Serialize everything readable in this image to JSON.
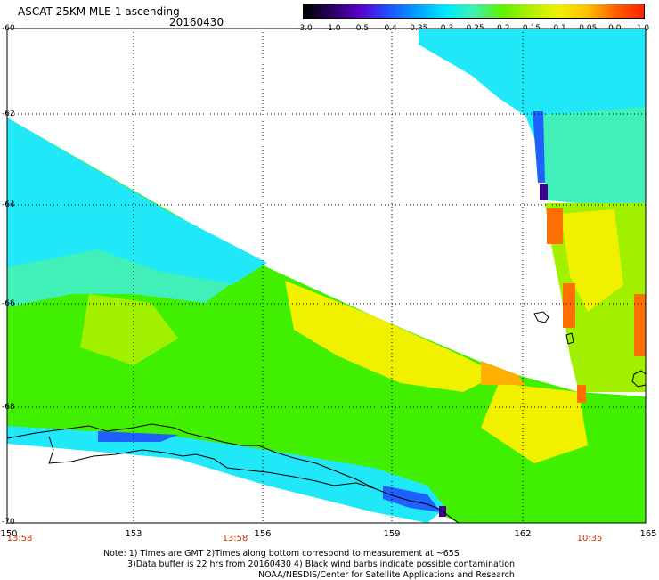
{
  "header": {
    "title": "ASCAT 25KM MLE-1 ascending",
    "date": "20160430"
  },
  "colorbar": {
    "labels": [
      "-3.0",
      "-1.0",
      "-0.5",
      "-0.4",
      "-0.35",
      "-0.3",
      "-0.25",
      "-0.2",
      "-0.15",
      "-0.1",
      "-0.05",
      "0.0",
      "1.0"
    ],
    "colors": [
      "#000000",
      "#2a0060",
      "#5a00c8",
      "#2050ff",
      "#00a0ff",
      "#00e8ff",
      "#40f0b0",
      "#60f000",
      "#b0f000",
      "#f0f000",
      "#ffc000",
      "#ff6000",
      "#ff2000"
    ]
  },
  "axes": {
    "latitudes": [
      "-60",
      "-62",
      "-64",
      "-66",
      "-68",
      "-70"
    ],
    "longitudes": [
      "150",
      "153",
      "156",
      "159",
      "162",
      "165"
    ],
    "times": [
      "13:58",
      "13:58",
      "10:35"
    ]
  },
  "notes": {
    "line1": "Note: 1) Times are GMT 2)Times along bottom correspond to measurement at ~65S",
    "line2": "3)Data buffer is 22 hrs from 20160430 4) Black wind barbs indicate possible contamination",
    "line3": "NOAA/NESDIS/Center for Satellite Applications and Research"
  },
  "map": {
    "colors": {
      "cyan": "#20e8f8",
      "teal": "#40f0b8",
      "green": "#40f000",
      "lime": "#a0f000",
      "yellow": "#f0f000",
      "orange": "#ffb000",
      "red": "#ff7000",
      "blue": "#2060ff",
      "purple": "#400090"
    }
  }
}
